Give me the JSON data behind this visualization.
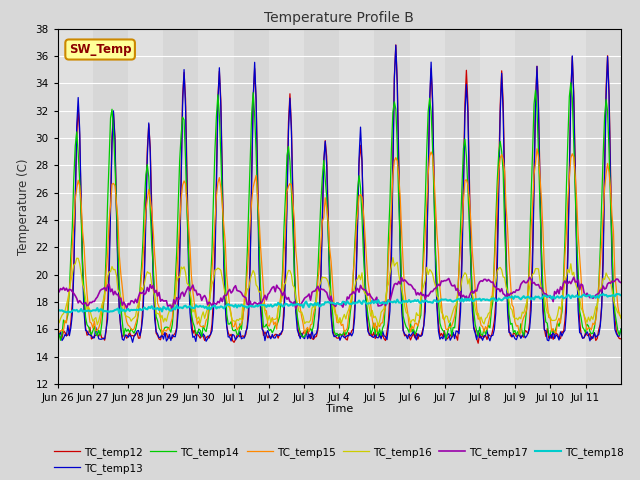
{
  "title": "Temperature Profile B",
  "ylabel": "Temperature (C)",
  "xlabel": "Time",
  "ylim": [
    12,
    38
  ],
  "fig_bg": "#d8d8d8",
  "plot_bg": "#e0e0e0",
  "annotation_text": "SW_Temp",
  "annotation_bg": "#ffff99",
  "annotation_border": "#cc8800",
  "series_colors": {
    "TC_temp12": "#cc0000",
    "TC_temp13": "#0000cc",
    "TC_temp14": "#00cc00",
    "TC_temp15": "#ff8800",
    "TC_temp16": "#cccc00",
    "TC_temp17": "#9900aa",
    "TC_temp18": "#00cccc"
  },
  "tick_labels": [
    "Jun 26",
    "Jun 27",
    "Jun 28",
    "Jun 29",
    "Jun 30",
    "Jul 1",
    "Jul 2",
    "Jul 3",
    "Jul 4",
    "Jul 5",
    "Jul 6",
    "Jul 7",
    "Jul 8",
    "Jul 9",
    "Jul 10",
    "Jul 11"
  ],
  "days": 16
}
